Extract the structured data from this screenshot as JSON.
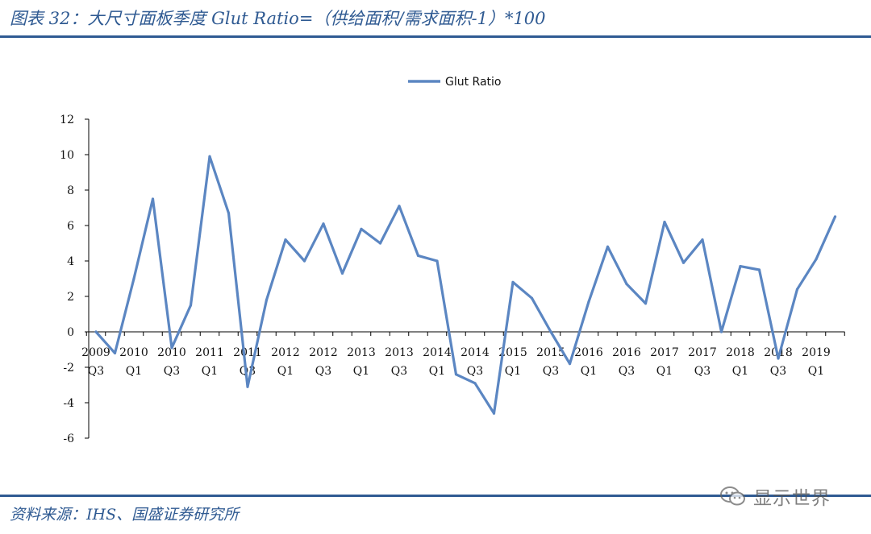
{
  "figure": {
    "title": "图表 32：大尺寸面板季度 Glut Ratio=（供给面积/需求面积-1）*100",
    "source": "资料来源：IHS、国盛证券研究所",
    "watermark": "显示世界"
  },
  "colors": {
    "series": "#5b86c2",
    "accent": "#2f5a92"
  },
  "chart_data": {
    "type": "line",
    "title": "",
    "xlabel": "",
    "ylabel": "",
    "ylim": [
      -6,
      12
    ],
    "y_ticks": [
      "12",
      "10",
      "8",
      "6",
      "4",
      "2",
      "0",
      "-2",
      "-4",
      "-6"
    ],
    "grid": false,
    "legend_position": "top-center",
    "x_tick_labels": [
      {
        "year": "2009",
        "q": "Q3"
      },
      {
        "year": "2010",
        "q": "Q1"
      },
      {
        "year": "2010",
        "q": "Q3"
      },
      {
        "year": "2011",
        "q": "Q1"
      },
      {
        "year": "2011",
        "q": "Q3"
      },
      {
        "year": "2012",
        "q": "Q1"
      },
      {
        "year": "2012",
        "q": "Q3"
      },
      {
        "year": "2013",
        "q": "Q1"
      },
      {
        "year": "2013",
        "q": "Q3"
      },
      {
        "year": "2014",
        "q": "Q1"
      },
      {
        "year": "2014",
        "q": "Q3"
      },
      {
        "year": "2015",
        "q": "Q1"
      },
      {
        "year": "2015",
        "q": "Q3"
      },
      {
        "year": "2016",
        "q": "Q1"
      },
      {
        "year": "2016",
        "q": "Q3"
      },
      {
        "year": "2017",
        "q": "Q1"
      },
      {
        "year": "2017",
        "q": "Q3"
      },
      {
        "year": "2018",
        "q": "Q1"
      },
      {
        "year": "2018",
        "q": "Q3"
      },
      {
        "year": "2019",
        "q": "Q1"
      }
    ],
    "series": [
      {
        "name": "Glut Ratio",
        "values": [
          0,
          -1.2,
          3.0,
          7.5,
          -0.9,
          1.5,
          9.9,
          6.7,
          -3.1,
          1.8,
          5.2,
          4.0,
          6.1,
          3.3,
          5.8,
          5.0,
          7.1,
          4.3,
          4.0,
          -2.4,
          -2.9,
          -4.6,
          2.8,
          1.9,
          0.0,
          -1.8,
          1.7,
          4.8,
          2.7,
          1.6,
          6.2,
          3.9,
          5.2,
          0.0,
          3.7,
          3.5,
          -1.5,
          2.4,
          4.1,
          6.5
        ]
      }
    ]
  }
}
